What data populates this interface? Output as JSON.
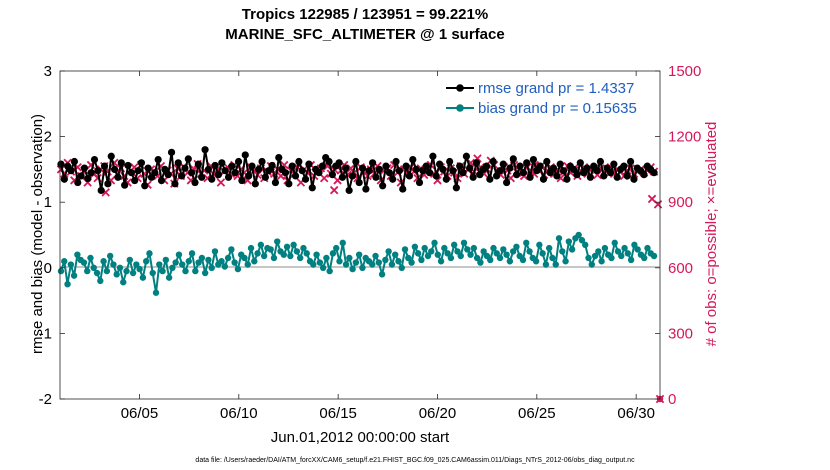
{
  "chart_data": {
    "type": "line",
    "title_line1": "Tropics 122985 / 123951 = 99.221%",
    "title_line2": "MARINE_SFC_ALTIMETER @ 1 surface",
    "xlabel": "Jun.01,2012 00:00:00 start",
    "ylabel_left": "rmse and bias (model - observation)",
    "ylabel_right": "# of obs: o=possible; ×=evaluated",
    "footer": "data file: /Users/raeder/DAI/ATM_forcXX/CAM6_setup/f.e21.FHIST_BGC.f09_025.CAM6assim.011/Diags_NTrS_2012-06/obs_diag_output.nc",
    "x_day_range": [
      1,
      31.2
    ],
    "x_ticks": [
      {
        "day": 5,
        "label": "06/05"
      },
      {
        "day": 10,
        "label": "06/10"
      },
      {
        "day": 15,
        "label": "06/15"
      },
      {
        "day": 20,
        "label": "06/20"
      },
      {
        "day": 25,
        "label": "06/25"
      },
      {
        "day": 30,
        "label": "06/30"
      }
    ],
    "ylim_left": [
      -2,
      3
    ],
    "yticks_left": [
      "-2",
      "-1",
      "0",
      "1",
      "2",
      "3"
    ],
    "ylim_right": [
      0,
      1500
    ],
    "yticks_right": [
      "0",
      "300",
      "600",
      "900",
      "1200",
      "1500"
    ],
    "colors": {
      "rmse": "#000000",
      "bias": "#008080",
      "obs": "#d6175a",
      "zero_line": "#b4b4b4",
      "axis": "#262626",
      "legend_text": "#1f5fbf"
    },
    "series": [
      {
        "name": "rmse grand pr = 1.4337",
        "axis": "left",
        "marker": "star",
        "values": [
          1.58,
          1.35,
          1.55,
          1.48,
          1.62,
          1.3,
          1.4,
          1.52,
          1.36,
          1.45,
          1.65,
          1.48,
          1.18,
          1.55,
          1.28,
          1.7,
          1.5,
          1.38,
          1.6,
          1.26,
          1.56,
          1.45,
          1.33,
          1.48,
          1.6,
          1.25,
          1.52,
          1.38,
          1.45,
          1.65,
          1.33,
          1.5,
          1.42,
          1.76,
          1.28,
          1.6,
          1.4,
          1.52,
          1.66,
          1.45,
          1.3,
          1.58,
          1.38,
          1.8,
          1.5,
          1.35,
          1.56,
          1.42,
          1.6,
          1.48,
          1.38,
          1.55,
          1.45,
          1.62,
          1.33,
          1.72,
          1.4,
          1.55,
          1.28,
          1.5,
          1.62,
          1.38,
          1.48,
          1.56,
          1.3,
          1.68,
          1.5,
          1.45,
          1.28,
          1.55,
          1.4,
          1.62,
          1.48,
          1.35,
          1.58,
          1.22,
          1.5,
          1.45,
          1.55,
          1.68,
          1.62,
          1.42,
          1.55,
          1.6,
          1.38,
          1.52,
          1.18,
          1.4,
          1.62,
          1.3,
          1.52,
          1.2,
          1.48,
          1.6,
          1.38,
          1.5,
          1.25,
          1.55,
          1.45,
          1.35,
          1.62,
          1.48,
          1.2,
          1.55,
          1.4,
          1.65,
          1.5,
          1.3,
          1.48,
          1.55,
          1.45,
          1.7,
          1.4,
          1.58,
          1.5,
          1.35,
          1.62,
          1.48,
          1.22,
          1.55,
          1.45,
          1.7,
          1.52,
          1.38,
          1.6,
          1.42,
          1.5,
          1.55,
          1.35,
          1.62,
          1.4,
          1.48,
          1.58,
          1.3,
          1.52,
          1.66,
          1.42,
          1.55,
          1.45,
          1.6,
          1.38,
          1.65,
          1.48,
          1.55,
          1.35,
          1.62,
          1.45,
          1.52,
          1.4,
          1.58,
          1.48,
          1.35,
          1.55,
          1.5,
          1.42,
          1.6,
          1.45,
          1.52,
          1.38,
          1.55,
          1.48,
          1.62,
          1.4,
          1.52,
          1.45,
          1.58,
          1.38,
          1.5,
          1.55,
          1.4,
          1.62,
          1.35,
          1.52,
          1.48,
          1.42,
          1.55,
          1.5,
          1.45
        ]
      },
      {
        "name": "bias grand pr = 0.15635",
        "axis": "left",
        "marker": "circle",
        "values": [
          -0.05,
          0.1,
          -0.25,
          0.05,
          -0.12,
          0.2,
          0.12,
          0.08,
          -0.05,
          0.15,
          0.0,
          -0.08,
          -0.2,
          0.1,
          -0.05,
          0.18,
          0.05,
          -0.1,
          0.0,
          -0.22,
          -0.05,
          0.12,
          -0.08,
          0.05,
          -0.02,
          -0.15,
          0.1,
          0.22,
          -0.08,
          -0.38,
          0.05,
          -0.05,
          0.12,
          -0.15,
          0.0,
          0.08,
          0.2,
          0.05,
          -0.05,
          0.1,
          0.22,
          -0.05,
          0.08,
          0.15,
          -0.08,
          0.12,
          0.0,
          0.25,
          0.05,
          0.1,
          0.02,
          0.15,
          0.28,
          0.08,
          -0.02,
          0.2,
          0.15,
          0.05,
          0.3,
          0.1,
          0.22,
          0.35,
          0.18,
          0.3,
          0.28,
          0.15,
          0.4,
          0.25,
          0.2,
          0.32,
          0.18,
          0.35,
          0.25,
          0.15,
          0.3,
          0.22,
          0.1,
          0.05,
          0.2,
          0.08,
          0.0,
          0.15,
          -0.05,
          0.22,
          0.3,
          0.1,
          0.38,
          0.05,
          0.15,
          -0.02,
          0.08,
          0.2,
          0.0,
          0.15,
          0.1,
          0.05,
          0.18,
          0.08,
          -0.1,
          0.12,
          0.25,
          0.05,
          0.2,
          0.1,
          0.0,
          0.28,
          0.15,
          0.08,
          0.32,
          0.22,
          0.12,
          0.3,
          0.18,
          0.25,
          0.38,
          0.2,
          0.1,
          0.3,
          0.22,
          0.15,
          0.35,
          0.25,
          0.18,
          0.38,
          0.28,
          0.2,
          0.3,
          0.15,
          0.08,
          0.25,
          0.18,
          0.12,
          0.3,
          0.22,
          0.15,
          0.28,
          0.2,
          0.1,
          0.25,
          0.32,
          0.18,
          0.12,
          0.38,
          0.25,
          0.15,
          0.1,
          0.35,
          0.22,
          0.05,
          0.3,
          0.15,
          0.05,
          0.45,
          0.25,
          0.1,
          0.4,
          0.28,
          0.45,
          0.5,
          0.42,
          0.35,
          0.15,
          0.05,
          0.18,
          0.25,
          0.1,
          0.3,
          0.2,
          0.15,
          0.38,
          0.25,
          0.18,
          0.3,
          0.22,
          0.12,
          0.35,
          0.28,
          0.2,
          0.15,
          0.3,
          0.22,
          0.18
        ]
      },
      {
        "name": "# of obs evaluated",
        "axis": "right",
        "marker": "x",
        "values": [
          1050,
          1030,
          1080,
          1040,
          1000,
          1060,
          1020,
          1045,
          990,
          1070,
          1030,
          1010,
          1050,
          1065,
          1040,
          1000,
          1080,
          1030,
          1055,
          1020,
          990,
          1045,
          1060,
          1010,
          1070,
          1030,
          980,
          1050,
          1040,
          1020,
          1065,
          1000,
          1045,
          1030,
          985,
          1055,
          1020,
          1060,
          1035,
          1000,
          1050,
          1075,
          1030,
          1045,
          1010,
          1065,
          1025,
          1050,
          990,
          1040,
          1060,
          1030,
          1070,
          1020,
          1050,
          1035,
          1000,
          1060,
          1045,
          1025,
          1055,
          1010,
          1040,
          1065,
          1030,
          1050,
          1020,
          1070,
          1000,
          1045,
          1030,
          1060,
          990,
          1050,
          1035,
          1070,
          1020,
          1040,
          1055,
          1010,
          1065,
          1030,
          1050,
          1000,
          1045,
          1070,
          1025,
          1055,
          1035,
          1010,
          1060,
          1040,
          1020,
          1050,
          1030,
          1065,
          1000,
          1045,
          1055,
          1020,
          1070,
          1035,
          990,
          1050,
          1030,
          1060,
          1040,
          1010,
          1055,
          1025,
          1045,
          1070,
          1030,
          1000,
          1060,
          1040,
          1020,
          1055,
          1035,
          1010,
          1065,
          1030,
          1050,
          1080,
          1040,
          1100,
          1060,
          1030,
          1050,
          1090,
          1070,
          1040,
          1025,
          1060,
          1045,
          1010,
          1070,
          1035,
          1055,
          1020,
          1060,
          1040,
          1030,
          1050,
          1065,
          1025,
          1045,
          1060,
          1030,
          1050,
          1010,
          1040,
          1065,
          1035,
          1055,
          1020,
          1045,
          1060,
          1030,
          1050,
          1040,
          1025,
          1055,
          1035,
          1045,
          1060,
          1030,
          1050,
          1040,
          1020,
          1045,
          1055,
          1030,
          1040,
          1050,
          1035,
          1045,
          1060,
          1040
        ]
      }
    ],
    "obs_outliers": [
      {
        "day": 3.3,
        "value": 945
      },
      {
        "day": 14.8,
        "value": 955
      },
      {
        "day": 24.9,
        "value": 1070
      },
      {
        "day": 30.8,
        "value": 915
      },
      {
        "day": 31.1,
        "value": 890
      },
      {
        "day": 31.2,
        "value": 0
      }
    ]
  }
}
